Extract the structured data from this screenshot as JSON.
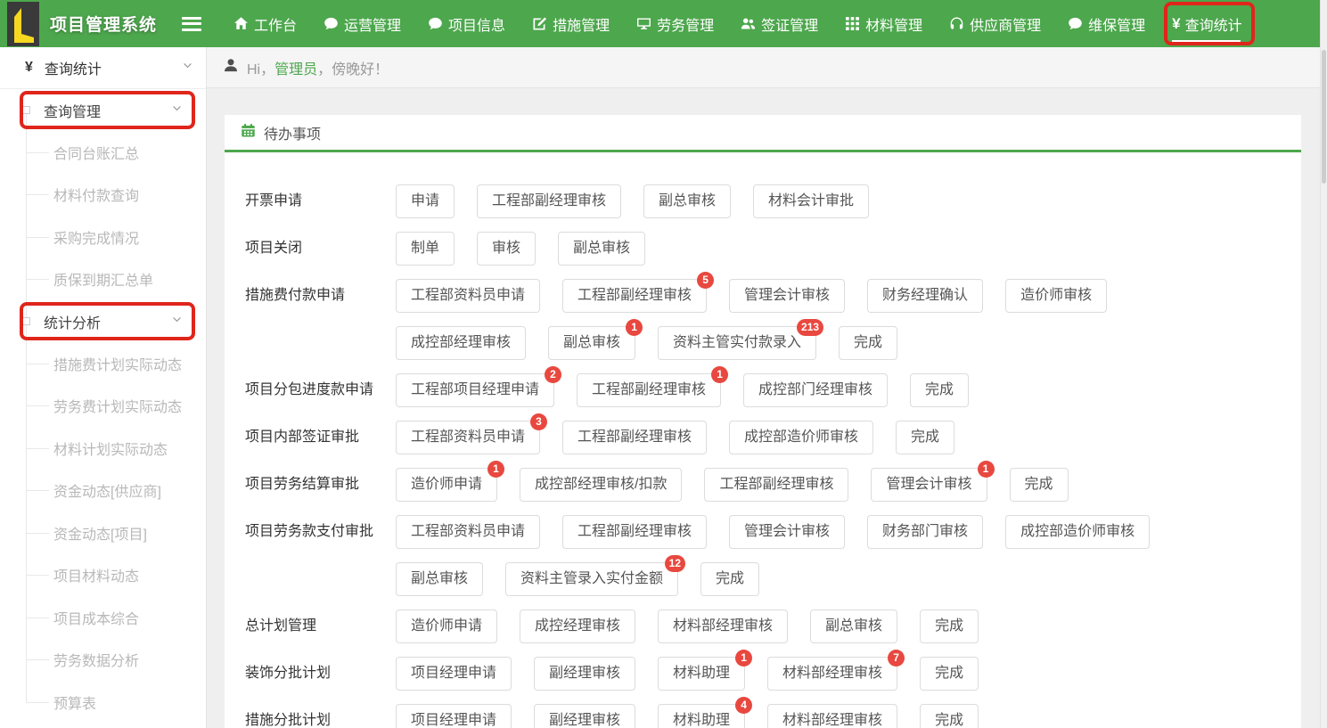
{
  "app_title": "项目管理系统",
  "topnav": {
    "items": [
      {
        "label": "工作台",
        "icon": "home"
      },
      {
        "label": "运营管理",
        "icon": "comment"
      },
      {
        "label": "项目信息",
        "icon": "comment"
      },
      {
        "label": "措施管理",
        "icon": "edit"
      },
      {
        "label": "劳务管理",
        "icon": "desktop"
      },
      {
        "label": "签证管理",
        "icon": "users"
      },
      {
        "label": "材料管理",
        "icon": "grid"
      },
      {
        "label": "供应商管理",
        "icon": "headphones"
      },
      {
        "label": "维保管理",
        "icon": "comment"
      },
      {
        "label": "查询统计",
        "icon": "yen",
        "active": true,
        "annotated": true
      }
    ]
  },
  "sidebar": {
    "root": {
      "label": "查询统计",
      "icon": "yen"
    },
    "groups": [
      {
        "label": "查询管理",
        "annotated": true,
        "children": [
          "合同台账汇总",
          "材料付款查询",
          "采购完成情况",
          "质保到期汇总单"
        ]
      },
      {
        "label": "统计分析",
        "annotated": true,
        "children": [
          "措施费计划实际动态",
          "劳务费计划实际动态",
          "材料计划实际动态",
          "资金动态[供应商]",
          "资金动态[项目]",
          "项目材料动态",
          "项目成本综合",
          "劳务数据分析",
          "预算表"
        ]
      }
    ]
  },
  "greeting": {
    "prefix": "Hi，",
    "username": "管理员",
    "suffix": "，傍晚好！"
  },
  "todo": {
    "title": "待办事项",
    "rows": [
      {
        "label": "开票申请",
        "lines": [
          [
            {
              "text": "申请"
            },
            {
              "text": "工程部副经理审核"
            },
            {
              "text": "副总审核"
            },
            {
              "text": "材料会计审批"
            }
          ]
        ]
      },
      {
        "label": "项目关闭",
        "lines": [
          [
            {
              "text": "制单"
            },
            {
              "text": "审核"
            },
            {
              "text": "副总审核"
            }
          ]
        ]
      },
      {
        "label": "措施费付款申请",
        "lines": [
          [
            {
              "text": "工程部资料员申请"
            },
            {
              "text": "工程部副经理审核",
              "badge": "5"
            },
            {
              "text": "管理会计审核"
            },
            {
              "text": "财务经理确认"
            },
            {
              "text": "造价师审核"
            }
          ],
          [
            {
              "text": "成控部经理审核"
            },
            {
              "text": "副总审核",
              "badge": "1"
            },
            {
              "text": "资料主管实付款录入",
              "badge": "213"
            },
            {
              "text": "完成"
            }
          ]
        ]
      },
      {
        "label": "项目分包进度款申请",
        "lines": [
          [
            {
              "text": "工程部项目经理申请",
              "badge": "2"
            },
            {
              "text": "工程部副经理审核",
              "badge": "1"
            },
            {
              "text": "成控部门经理审核"
            },
            {
              "text": "完成"
            }
          ]
        ]
      },
      {
        "label": "项目内部签证审批",
        "lines": [
          [
            {
              "text": "工程部资料员申请",
              "badge": "3"
            },
            {
              "text": "工程部副经理审核"
            },
            {
              "text": "成控部造价师审核"
            },
            {
              "text": "完成"
            }
          ]
        ]
      },
      {
        "label": "项目劳务结算审批",
        "lines": [
          [
            {
              "text": "造价师申请",
              "badge": "1"
            },
            {
              "text": "成控部经理审核/扣款"
            },
            {
              "text": "工程部副经理审核"
            },
            {
              "text": "管理会计审核",
              "badge": "1"
            },
            {
              "text": "完成"
            }
          ]
        ]
      },
      {
        "label": "项目劳务款支付审批",
        "lines": [
          [
            {
              "text": "工程部资料员申请"
            },
            {
              "text": "工程部副经理审核"
            },
            {
              "text": "管理会计审核"
            },
            {
              "text": "财务部门审核"
            },
            {
              "text": "成控部造价师审核"
            }
          ],
          [
            {
              "text": "副总审核"
            },
            {
              "text": "资料主管录入实付金额",
              "badge": "12"
            },
            {
              "text": "完成"
            }
          ]
        ]
      },
      {
        "label": "总计划管理",
        "lines": [
          [
            {
              "text": "造价师申请"
            },
            {
              "text": "成控经理审核"
            },
            {
              "text": "材料部经理审核"
            },
            {
              "text": "副总审核"
            },
            {
              "text": "完成"
            }
          ]
        ]
      },
      {
        "label": "装饰分批计划",
        "lines": [
          [
            {
              "text": "项目经理申请"
            },
            {
              "text": "副经理审核"
            },
            {
              "text": "材料助理",
              "badge": "1"
            },
            {
              "text": "材料部经理审核",
              "badge": "7"
            },
            {
              "text": "完成"
            }
          ]
        ]
      },
      {
        "label": "措施分批计划",
        "lines": [
          [
            {
              "text": "项目经理申请"
            },
            {
              "text": "副经理审核"
            },
            {
              "text": "材料助理",
              "badge": "4"
            },
            {
              "text": "材料部经理审核"
            },
            {
              "text": "完成"
            }
          ]
        ]
      }
    ]
  },
  "colors": {
    "topbar_green": "#4DA74D",
    "accent_green": "#4DA74D",
    "badge_red": "#E8483F",
    "annotation_red": "#E0251B",
    "logo_dark": "#3A3A3A",
    "logo_yellow": "#F6D821"
  }
}
